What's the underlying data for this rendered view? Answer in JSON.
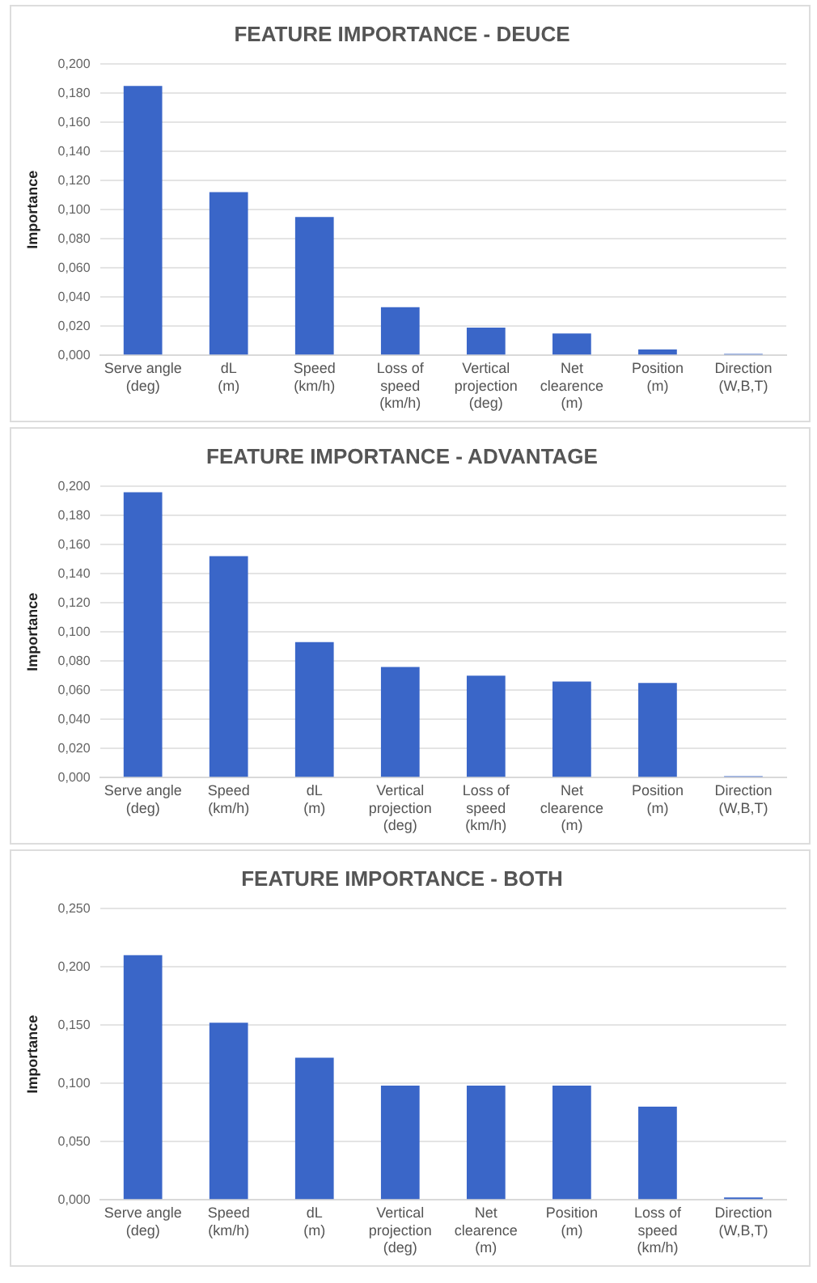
{
  "chart_data": [
    {
      "type": "bar",
      "title": "FEATURE IMPORTANCE - DEUCE",
      "ylabel": "Importance",
      "categories": [
        "Serve angle (deg)",
        "dL (m)",
        "Speed (km/h)",
        "Loss of speed (km/h)",
        "Vertical projection (deg)",
        "Net clearence (m)",
        "Position (m)",
        "Direction (W,B,T)"
      ],
      "values": [
        0.185,
        0.112,
        0.095,
        0.033,
        0.019,
        0.015,
        0.004,
        0.001
      ],
      "color": "#3a66c8",
      "ylim": [
        0,
        0.2
      ],
      "yticks": [
        {
          "value": 0,
          "label": "0,000"
        },
        {
          "value": 0.02,
          "label": "0,020"
        },
        {
          "value": 0.04,
          "label": "0,040"
        },
        {
          "value": 0.06,
          "label": "0,060"
        },
        {
          "value": 0.08,
          "label": "0,080"
        },
        {
          "value": 0.1,
          "label": "0,100"
        },
        {
          "value": 0.12,
          "label": "0,120"
        },
        {
          "value": 0.14,
          "label": "0,140"
        },
        {
          "value": 0.16,
          "label": "0,160"
        },
        {
          "value": 0.18,
          "label": "0,180"
        },
        {
          "value": 0.2,
          "label": "0,200"
        }
      ],
      "grid": "y",
      "legend": false
    },
    {
      "type": "bar",
      "title": "FEATURE IMPORTANCE - ADVANTAGE",
      "ylabel": "Importance",
      "categories": [
        "Serve angle (deg)",
        "Speed (km/h)",
        "dL (m)",
        "Vertical projection (deg)",
        "Loss of speed (km/h)",
        "Net clearence (m)",
        "Position (m)",
        "Direction (W,B,T)"
      ],
      "values": [
        0.196,
        0.152,
        0.093,
        0.076,
        0.07,
        0.066,
        0.065,
        0.001
      ],
      "color": "#3a66c8",
      "ylim": [
        0,
        0.2
      ],
      "yticks": [
        {
          "value": 0,
          "label": "0,000"
        },
        {
          "value": 0.02,
          "label": "0,020"
        },
        {
          "value": 0.04,
          "label": "0,040"
        },
        {
          "value": 0.06,
          "label": "0,060"
        },
        {
          "value": 0.08,
          "label": "0,080"
        },
        {
          "value": 0.1,
          "label": "0,100"
        },
        {
          "value": 0.12,
          "label": "0,120"
        },
        {
          "value": 0.14,
          "label": "0,140"
        },
        {
          "value": 0.16,
          "label": "0,160"
        },
        {
          "value": 0.18,
          "label": "0,180"
        },
        {
          "value": 0.2,
          "label": "0,200"
        }
      ],
      "grid": "y",
      "legend": false
    },
    {
      "type": "bar",
      "title": "FEATURE IMPORTANCE - BOTH",
      "ylabel": "Importance",
      "categories": [
        "Serve angle (deg)",
        "Speed (km/h)",
        "dL (m)",
        "Vertical projection (deg)",
        "Net clearence (m)",
        "Position (m)",
        "Loss of speed (km/h)",
        "Direction (W,B,T)"
      ],
      "values": [
        0.21,
        0.152,
        0.122,
        0.098,
        0.098,
        0.098,
        0.08,
        0.002
      ],
      "color": "#3a66c8",
      "ylim": [
        0,
        0.25
      ],
      "yticks": [
        {
          "value": 0,
          "label": "0,000"
        },
        {
          "value": 0.05,
          "label": "0,050"
        },
        {
          "value": 0.1,
          "label": "0,100"
        },
        {
          "value": 0.15,
          "label": "0,150"
        },
        {
          "value": 0.2,
          "label": "0,200"
        },
        {
          "value": 0.25,
          "label": "0,250"
        }
      ],
      "grid": "y",
      "legend": false
    }
  ]
}
